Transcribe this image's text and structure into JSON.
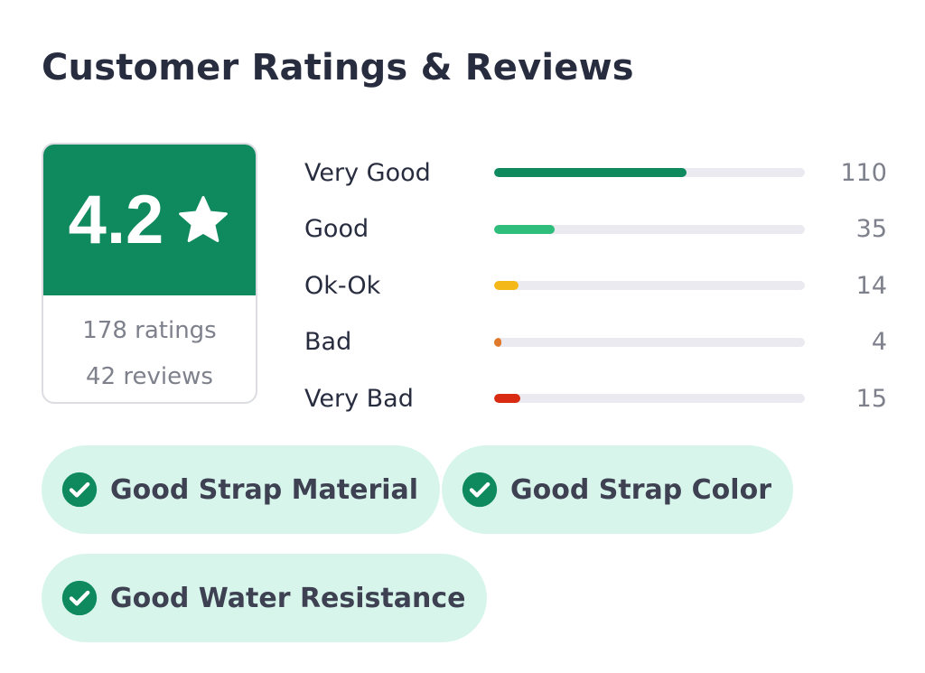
{
  "header": {
    "title": "Customer Ratings & Reviews"
  },
  "summary": {
    "score": "4.2",
    "ratings_text": "178 ratings",
    "reviews_text": "42 reviews",
    "score_bg_color": "#0f8a5f"
  },
  "distribution": [
    {
      "label": "Very Good",
      "count": "110",
      "fraction": 0.62,
      "color": "#0f8a5f"
    },
    {
      "label": "Good",
      "count": "35",
      "fraction": 0.195,
      "color": "#2ebd7a"
    },
    {
      "label": "Ok-Ok",
      "count": "14",
      "fraction": 0.078,
      "color": "#f4b819"
    },
    {
      "label": "Bad",
      "count": "4",
      "fraction": 0.022,
      "color": "#e07a2a"
    },
    {
      "label": "Very Bad",
      "count": "15",
      "fraction": 0.084,
      "color": "#d92a12"
    }
  ],
  "tags": [
    {
      "label": "Good Strap Material",
      "icon": "check-circle-icon"
    },
    {
      "label": "Good Strap Color",
      "icon": "check-circle-icon"
    },
    {
      "label": "Good Water Resistance",
      "icon": "check-circle-icon"
    }
  ]
}
